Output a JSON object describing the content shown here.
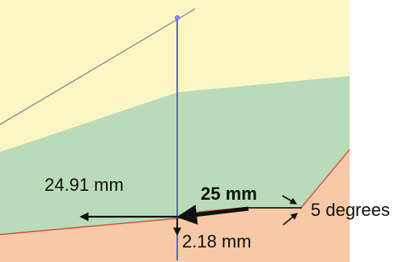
{
  "labels": {
    "left_distance": "24.91 mm",
    "arrow_length": "25 mm",
    "vertical_offset": "2.18 mm",
    "angle": "5 degrees"
  },
  "colors": {
    "upper_layer": "#fcf6c5",
    "middle_layer": "#b9dbb9",
    "lower_layer": "#f7c9a6",
    "axis": "#5b63d8",
    "boundary": "#d94b3f",
    "arrows": "#111111"
  }
}
